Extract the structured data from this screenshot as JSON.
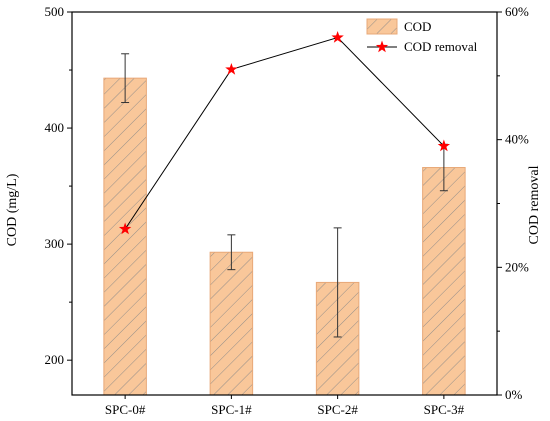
{
  "chart_data": {
    "type": "bar+line",
    "categories": [
      "SPC-0#",
      "SPC-1#",
      "SPC-2#",
      "SPC-3#"
    ],
    "series": [
      {
        "name": "COD",
        "type": "bar",
        "axis": "left",
        "values": [
          443,
          293,
          267,
          366
        ],
        "error": [
          21,
          15,
          47,
          20
        ],
        "color": "#f9c79a",
        "edge_color": "#e8a878",
        "hatch": "diagonal"
      },
      {
        "name": "COD removal",
        "type": "line",
        "axis": "right",
        "values": [
          26,
          51,
          56,
          39
        ],
        "line_color": "#000000",
        "marker": "star",
        "marker_color": "#ff0000"
      }
    ],
    "ylabel": "COD (mg/L)",
    "ylabel_right": "COD removal",
    "ylim": [
      170,
      500
    ],
    "yticks": [
      200,
      300,
      400,
      500
    ],
    "ylim_right": [
      0,
      60
    ],
    "yticks_right": [
      "0%",
      "20%",
      "40%",
      "60%"
    ],
    "yticks_right_values": [
      0,
      20,
      40,
      60
    ],
    "legend_position": "top-right",
    "grid": false
  }
}
